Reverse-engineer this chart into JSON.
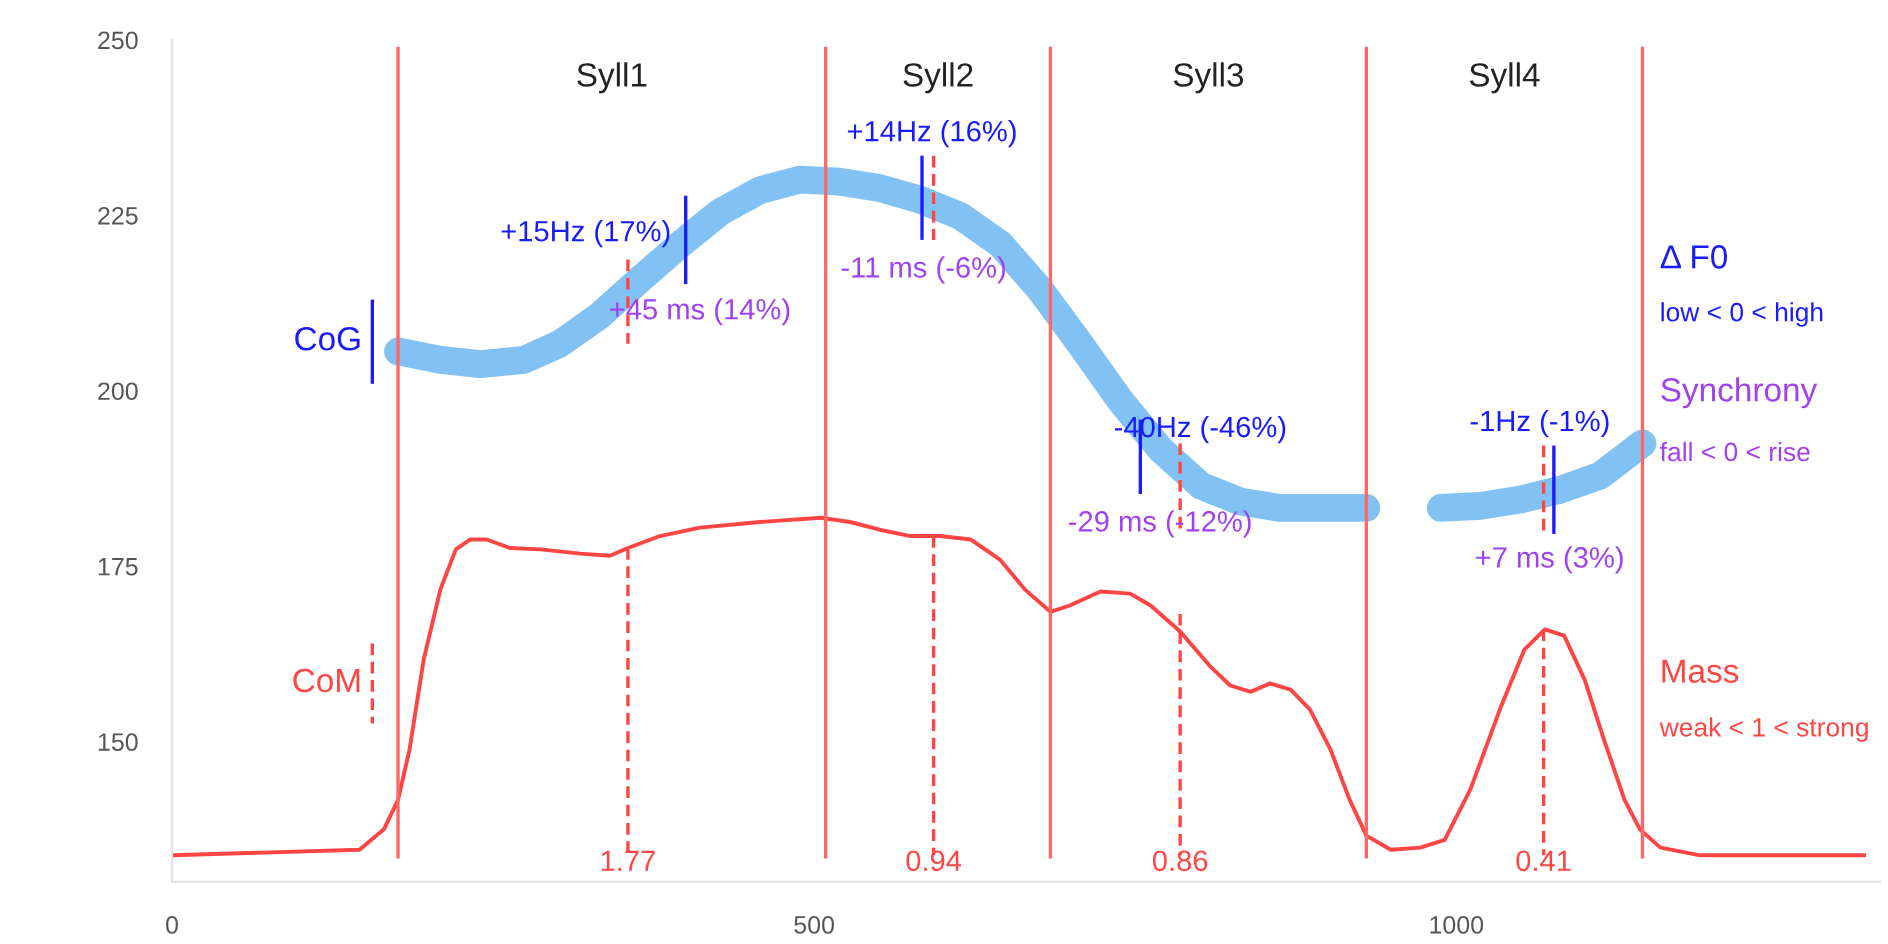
{
  "chart_data": {
    "type": "line",
    "xlim": [
      0,
      1330
    ],
    "ylim": [
      130,
      250
    ],
    "xticks": [
      0,
      500,
      1000
    ],
    "yticks": [
      150,
      175,
      200,
      225,
      250
    ],
    "grid": false,
    "legend": false,
    "series": [
      {
        "color": "#6cb6f2",
        "x": [
          176,
          209,
          240,
          274,
          302,
          333,
          364,
          396,
          427,
          458,
          489,
          520,
          551,
          583,
          614,
          645,
          676,
          707,
          738,
          770,
          801,
          832,
          863,
          894,
          930,
          960,
          988,
          1019,
          1050,
          1081,
          1112,
          1145
        ],
        "values": [
          205.6,
          204.4,
          203.8,
          204.4,
          206.7,
          210.7,
          215.8,
          220.9,
          225.5,
          228.6,
          230.1,
          229.8,
          228.9,
          227.2,
          224.9,
          220.9,
          214.4,
          206.7,
          198.7,
          191.6,
          186.5,
          184.2,
          183.3,
          183.3,
          183.3,
          null,
          183.3,
          183.6,
          184.5,
          185.9,
          187.9,
          192.5
        ]
      },
      {
        "color": "#ff4444",
        "x": [
          0,
          146,
          165,
          176,
          185,
          196,
          209,
          221,
          232,
          245,
          263,
          287,
          318,
          341,
          355,
          380,
          411,
          458,
          505,
          528,
          551,
          575,
          598,
          622,
          645,
          664,
          684,
          699,
          723,
          746,
          762,
          785,
          808,
          824,
          840,
          855,
          871,
          886,
          902,
          917,
          930,
          949,
          972,
          991,
          1011,
          1034,
          1053,
          1069,
          1084,
          1100,
          1115,
          1131,
          1143,
          1159,
          1190,
          1319
        ],
        "values": [
          133.8,
          134.6,
          137.5,
          141.7,
          148.9,
          161.7,
          171.7,
          177.4,
          178.8,
          178.8,
          177.6,
          177.4,
          176.8,
          176.5,
          177.6,
          179.3,
          180.5,
          181.3,
          181.9,
          181.3,
          180.2,
          179.3,
          179.3,
          178.8,
          175.9,
          171.7,
          168.5,
          169.4,
          171.4,
          171.1,
          169.4,
          165.7,
          160.8,
          158.0,
          157.1,
          158.3,
          157.4,
          154.6,
          148.9,
          141.7,
          136.6,
          134.6,
          134.9,
          136.0,
          143.2,
          154.6,
          163.1,
          166.0,
          165.1,
          158.8,
          150.3,
          141.7,
          137.5,
          134.9,
          133.8,
          133.8
        ]
      },
      {
        "color": "#1a1aff",
        "x": [
          400,
          400
        ],
        "values": [
          227.8,
          215.2
        ]
      },
      {
        "color": "#1a1aff",
        "x": [
          584,
          584
        ],
        "values": [
          233.5,
          221.5
        ]
      },
      {
        "color": "#1a1aff",
        "x": [
          754,
          754
        ],
        "values": [
          195.9,
          185.3
        ]
      },
      {
        "color": "#1a1aff",
        "x": [
          1076,
          1076
        ],
        "values": [
          192.2,
          179.6
        ]
      },
      {
        "color": "#ff4444",
        "line_style": "dashed",
        "x": [
          355,
          355
        ],
        "values": [
          218.7,
          206.7
        ]
      },
      {
        "color": "#ff4444",
        "line_style": "dashed",
        "x": [
          593,
          593
        ],
        "values": [
          233.5,
          221.5
        ]
      },
      {
        "color": "#ff4444",
        "line_style": "dashed",
        "x": [
          785,
          785
        ],
        "values": [
          192.5,
          179.6
        ]
      },
      {
        "color": "#ff4444",
        "line_style": "dashed",
        "x": [
          1068,
          1068
        ],
        "values": [
          192.2,
          179.6
        ]
      },
      {
        "color": "#ff4444",
        "line_style": "dashed",
        "x": [
          355,
          355
        ],
        "values": [
          177.6,
          133.8
        ]
      },
      {
        "color": "#ff4444",
        "line_style": "dashed",
        "x": [
          593,
          593
        ],
        "values": [
          179.3,
          133.8
        ]
      },
      {
        "color": "#ff4444",
        "line_style": "dashed",
        "x": [
          785,
          785
        ],
        "values": [
          168.2,
          133.8
        ]
      },
      {
        "color": "#ff4444",
        "line_style": "dashed",
        "x": [
          1068,
          1068
        ],
        "values": [
          166.0,
          133.8
        ]
      },
      {
        "name": "CoG",
        "color": "#1a1aff",
        "x": [
          156,
          156
        ],
        "values": [
          213,
          201
        ]
      },
      {
        "name": "CoM",
        "color": "#ff4444",
        "line_style": "dashed",
        "x": [
          156,
          156
        ],
        "values": [
          164,
          152.6
        ]
      }
    ],
    "ref_lines": [
      {
        "axis": "x",
        "value": 176,
        "color": "#ff6666"
      },
      {
        "axis": "x",
        "value": 509,
        "color": "#ff6666"
      },
      {
        "axis": "x",
        "value": 684,
        "color": "#ff6666"
      },
      {
        "axis": "x",
        "value": 930,
        "color": "#ff6666"
      },
      {
        "axis": "x",
        "value": 1145,
        "color": "#ff6666"
      }
    ],
    "annotations": [
      "Syll1",
      "Syll2",
      "Syll3",
      "Syll4",
      {
        "text": "+15Hz (17%)",
        "x": 400,
        "y": 227.8
      },
      {
        "text": "+45 ms (14%)",
        "x": 355,
        "y": 206.7
      },
      {
        "text": "+14Hz (16%)",
        "x": 584,
        "y": 233.5
      },
      {
        "text": "-11 ms (-6%)",
        "x": 593,
        "y": 221.5
      },
      {
        "text": "-40Hz (-46%)",
        "x": 754,
        "y": 195.9
      },
      {
        "text": "-29 ms (-12%)",
        "x": 785,
        "y": 179.6
      },
      {
        "text": "-1Hz (-1%)",
        "x": 1076,
        "y": 192.2
      },
      {
        "text": "+7 ms (3%)",
        "x": 1068,
        "y": 179.6
      },
      {
        "text": "1.77",
        "x": 355,
        "y": 133.8
      },
      {
        "text": "0.94",
        "x": 593,
        "y": 133.8
      },
      {
        "text": "0.86",
        "x": 785,
        "y": 133.8
      },
      {
        "text": "0.41",
        "x": 1068,
        "y": 133.8
      },
      "Δ F0",
      "low < 0 < high",
      "Synchrony",
      "fall < 0 < rise",
      "Mass",
      "weak < 1 < strong"
    ]
  }
}
